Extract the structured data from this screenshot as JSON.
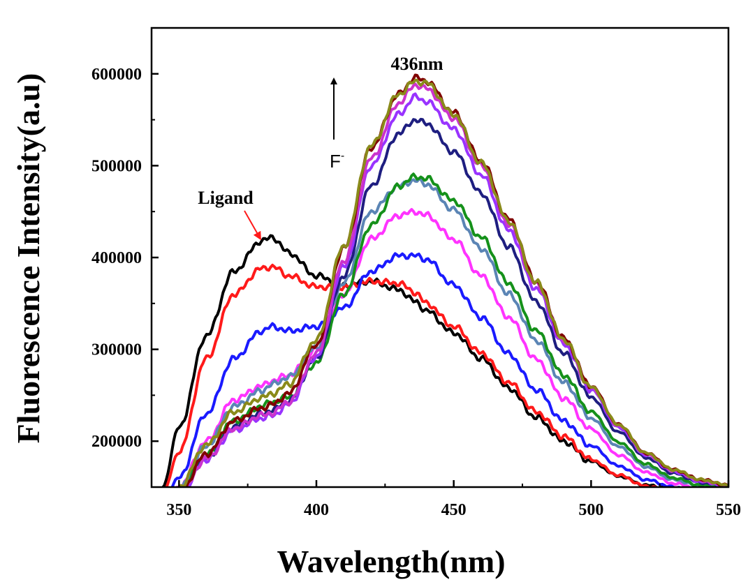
{
  "chart_data": {
    "type": "line",
    "xlabel": "Wavelength(nm)",
    "ylabel": "Fluorescence Intensity(a.u)",
    "xlim": [
      340,
      550
    ],
    "ylim": [
      150000,
      650000
    ],
    "xticks": [
      350,
      400,
      450,
      500,
      550
    ],
    "yticks": [
      200000,
      300000,
      400000,
      500000,
      600000
    ],
    "xtick_labels": [
      "350",
      "400",
      "450",
      "500",
      "550"
    ],
    "ytick_labels": [
      "200000",
      "300000",
      "400000",
      "500000",
      "600000"
    ],
    "grid": false,
    "annotations": {
      "peak_label": "436nm",
      "ligand_label": "Ligand",
      "arrow_label_base": "F",
      "arrow_label_sup": "-"
    },
    "x": [
      344,
      350,
      360,
      370,
      380,
      384,
      390,
      400,
      410,
      420,
      430,
      436,
      440,
      450,
      460,
      470,
      480,
      490,
      500,
      510,
      520,
      530,
      540,
      550
    ],
    "series": [
      {
        "color": "#000000",
        "values": [
          150000,
          215000,
          315000,
          385000,
          418000,
          422000,
          405000,
          380000,
          370000,
          374000,
          365000,
          352000,
          342000,
          318000,
          290000,
          258000,
          226000,
          200000,
          178000,
          162000,
          152000,
          148000,
          146000,
          145000
        ]
      },
      {
        "color": "#ff1a1a",
        "values": [
          142000,
          188000,
          290000,
          360000,
          388000,
          390000,
          380000,
          368000,
          368000,
          374000,
          372000,
          362000,
          350000,
          325000,
          296000,
          264000,
          232000,
          205000,
          180000,
          163000,
          151000,
          146000,
          144000,
          143000
        ]
      },
      {
        "color": "#1a1aff",
        "values": [
          135000,
          160000,
          230000,
          290000,
          320000,
          325000,
          320000,
          325000,
          345000,
          385000,
          402000,
          402000,
          398000,
          370000,
          335000,
          295000,
          256000,
          222000,
          195000,
          173000,
          158000,
          150000,
          146000,
          144000
        ]
      },
      {
        "color": "#ff33ff",
        "values": [
          132000,
          150000,
          200000,
          245000,
          260000,
          266000,
          272000,
          300000,
          360000,
          420000,
          446000,
          450000,
          446000,
          420000,
          380000,
          335000,
          289000,
          247000,
          213000,
          185000,
          166000,
          154000,
          148000,
          145000
        ]
      },
      {
        "color": "#5b85b5",
        "values": [
          132000,
          148000,
          195000,
          238000,
          255000,
          262000,
          270000,
          302000,
          372000,
          450000,
          478000,
          484000,
          480000,
          452000,
          410000,
          360000,
          310000,
          264000,
          225000,
          194000,
          172000,
          158000,
          151000,
          147000
        ]
      },
      {
        "color": "#15911a",
        "values": [
          130000,
          144000,
          185000,
          222000,
          238000,
          243000,
          248000,
          285000,
          360000,
          435000,
          478000,
          488000,
          486000,
          462000,
          422000,
          372000,
          320000,
          272000,
          232000,
          199000,
          175000,
          160000,
          152000,
          148000
        ]
      },
      {
        "color": "#1e1e80",
        "values": [
          130000,
          143000,
          182000,
          216000,
          230000,
          234000,
          244000,
          290000,
          380000,
          478000,
          535000,
          550000,
          546000,
          515000,
          470000,
          412000,
          352000,
          296000,
          248000,
          210000,
          182000,
          165000,
          155000,
          150000
        ]
      },
      {
        "color": "#9933ff",
        "values": [
          128000,
          141000,
          180000,
          212000,
          225000,
          228000,
          240000,
          292000,
          390000,
          500000,
          556000,
          575000,
          570000,
          540000,
          490000,
          430000,
          366000,
          306000,
          256000,
          215000,
          185000,
          167000,
          156000,
          151000
        ]
      },
      {
        "color": "#cc33cc",
        "values": [
          128000,
          141000,
          181000,
          214000,
          228000,
          231000,
          243000,
          295000,
          396000,
          508000,
          568000,
          588000,
          584000,
          552000,
          500000,
          437000,
          371000,
          310000,
          258000,
          217000,
          186000,
          168000,
          157000,
          151000
        ]
      },
      {
        "color": "#800000",
        "values": [
          128000,
          143000,
          186000,
          222000,
          236000,
          240000,
          252000,
          305000,
          410000,
          520000,
          578000,
          596000,
          592000,
          558000,
          505000,
          442000,
          374000,
          312000,
          260000,
          218000,
          187000,
          169000,
          158000,
          152000
        ]
      },
      {
        "color": "#8a8a1a",
        "values": [
          130000,
          150000,
          196000,
          232000,
          247000,
          252000,
          262000,
          310000,
          412000,
          522000,
          578000,
          592000,
          590000,
          556000,
          503000,
          440000,
          373000,
          311000,
          259000,
          218000,
          187000,
          169000,
          158000,
          152000
        ]
      }
    ]
  }
}
